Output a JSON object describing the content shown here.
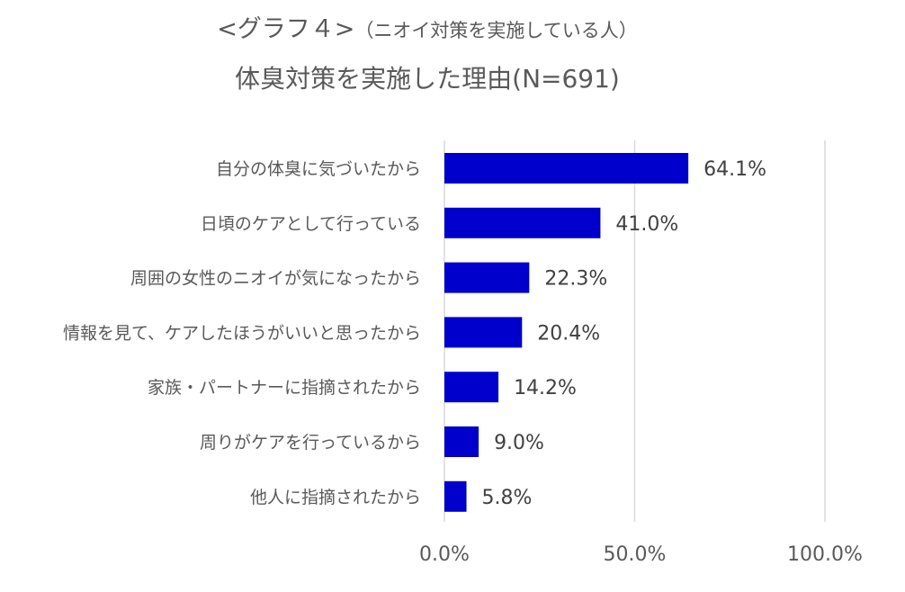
{
  "title_line1": "<グラフ４>",
  "title_line1_sub": "（ニオイ対策を実施している人）",
  "title_line2": "体臭対策を実施した理由(N=691)",
  "colors": {
    "bar": "#0000CC",
    "grid": "#D9D9D9",
    "text": "#595959"
  },
  "chart_data": {
    "type": "bar",
    "orientation": "horizontal",
    "title": "体臭対策を実施した理由(N=691)",
    "categories": [
      "自分の体臭に気づいたから",
      "日頃のケアとして行っている",
      "周囲の女性のニオイが気になったから",
      "情報を見て、ケアしたほうがいいと思ったから",
      "家族・パートナーに指摘されたから",
      "周りがケアを行っているから",
      "他人に指摘されたから"
    ],
    "values": [
      64.1,
      41.0,
      22.3,
      20.4,
      14.2,
      9.0,
      5.8
    ],
    "value_labels": [
      "64.1%",
      "41.0%",
      "22.3%",
      "20.4%",
      "14.2%",
      "9.0%",
      "5.8%"
    ],
    "xlim": [
      0,
      100
    ],
    "ticks": [
      0,
      50,
      100
    ],
    "tick_labels": [
      "0.0%",
      "50.0%",
      "100.0%"
    ],
    "grid": true,
    "xlabel": "",
    "ylabel": ""
  }
}
